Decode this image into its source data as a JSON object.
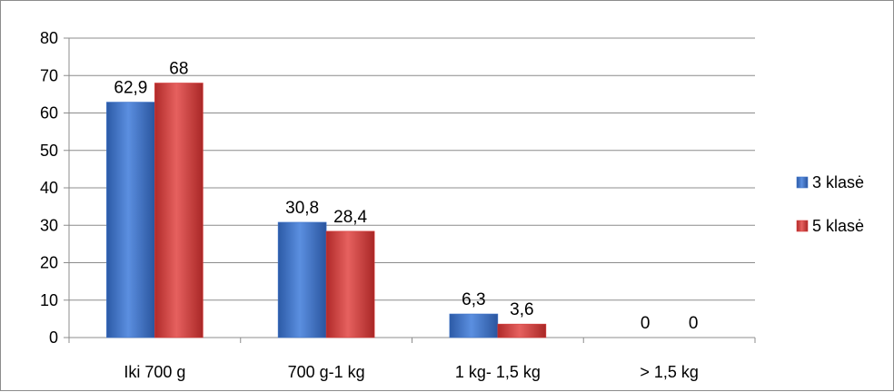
{
  "chart_data": {
    "type": "bar",
    "categories": [
      "Iki 700 g",
      "700 g-1 kg",
      "1 kg- 1,5 kg",
      "> 1,5 kg"
    ],
    "series": [
      {
        "name": "3 klasė",
        "values": [
          62.9,
          30.8,
          6.3,
          0
        ],
        "labels": [
          "62,9",
          "30,8",
          "6,3",
          "0"
        ],
        "color": "#3f74c9"
      },
      {
        "name": "5 klasė",
        "values": [
          68,
          28.4,
          3.6,
          0
        ],
        "labels": [
          "68",
          "28,4",
          "3,6",
          "0"
        ],
        "color": "#d63b3a"
      }
    ],
    "ylim": [
      0,
      80
    ],
    "yticks": [
      "0",
      "10",
      "20",
      "30",
      "40",
      "50",
      "60",
      "70",
      "80"
    ],
    "grid": true,
    "legend_position": "right",
    "title": "",
    "xlabel": "",
    "ylabel": ""
  }
}
